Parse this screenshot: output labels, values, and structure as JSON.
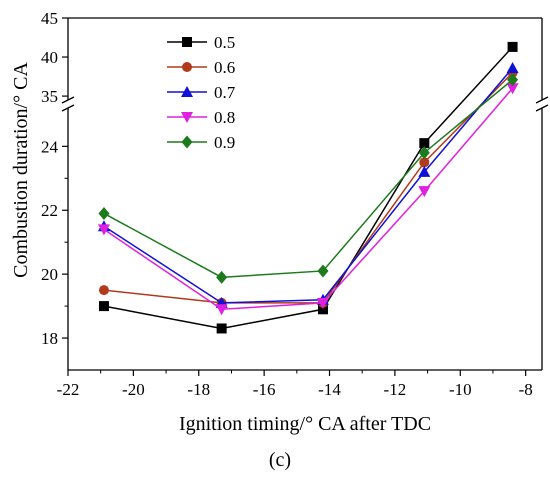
{
  "chart_data": {
    "type": "line",
    "xlabel": "Ignition timing/° CA after TDC",
    "ylabel": "Combustion duration/° CA",
    "caption": "(c)",
    "xlim": [
      -22,
      -7.5
    ],
    "x_ticks": [
      -22,
      -20,
      -18,
      -16,
      -14,
      -12,
      -10,
      -8
    ],
    "y_axis_broken": true,
    "ylim_lower": [
      17,
      25.2
    ],
    "ylim_upper": [
      34.5,
      45
    ],
    "y_ticks_lower": [
      18,
      20,
      22,
      24
    ],
    "y_ticks_upper": [
      35,
      40,
      45
    ],
    "legend_position": "top-left",
    "x": [
      -20.9,
      -17.3,
      -14.2,
      -11.1,
      -8.4
    ],
    "series": [
      {
        "name": "0.5",
        "color": "#000000",
        "marker": "square",
        "values": [
          19.0,
          18.3,
          18.9,
          24.1,
          41.3
        ]
      },
      {
        "name": "0.6",
        "color": "#b03a1a",
        "marker": "circle",
        "values": [
          19.5,
          19.1,
          19.1,
          23.5,
          38.0
        ]
      },
      {
        "name": "0.7",
        "color": "#1010d8",
        "marker": "triangle-up",
        "values": [
          21.5,
          19.1,
          19.2,
          23.2,
          38.6
        ]
      },
      {
        "name": "0.8",
        "color": "#e020e0",
        "marker": "triangle-down",
        "values": [
          21.4,
          18.9,
          19.1,
          22.6,
          36.0
        ]
      },
      {
        "name": "0.9",
        "color": "#1d7a1d",
        "marker": "diamond",
        "values": [
          21.9,
          19.9,
          20.1,
          23.8,
          37.1
        ]
      }
    ]
  }
}
